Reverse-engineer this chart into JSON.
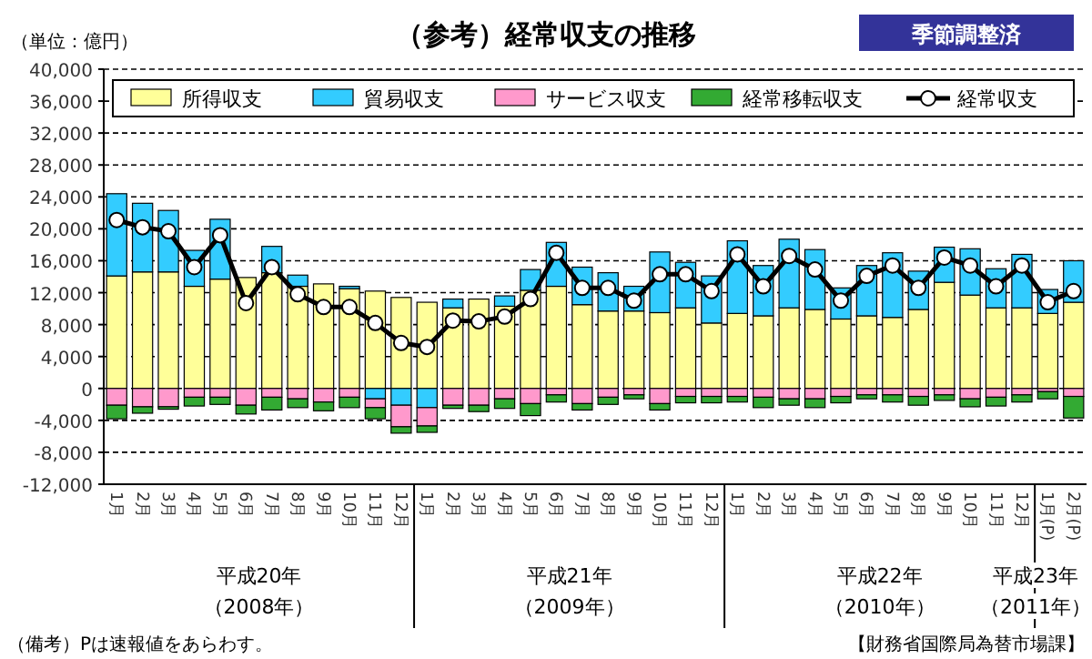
{
  "chart_data": {
    "type": "bar",
    "stacked": true,
    "title": "（参考）経常収支の推移",
    "subtitle": "季節調整済",
    "ylabel": "（単位：億円）",
    "categories": [
      "1月",
      "2月",
      "3月",
      "4月",
      "5月",
      "6月",
      "7月",
      "8月",
      "9月",
      "10月",
      "11月",
      "12月",
      "1月",
      "2月",
      "3月",
      "4月",
      "5月",
      "6月",
      "7月",
      "8月",
      "9月",
      "10月",
      "11月",
      "12月",
      "1月",
      "2月",
      "3月",
      "4月",
      "5月",
      "6月",
      "7月",
      "8月",
      "9月",
      "10月",
      "11月",
      "12月",
      "1月(P)",
      "2月(P)"
    ],
    "series": [
      {
        "name": "所得収支",
        "color": "#ffff99",
        "values": [
          14100,
          14600,
          14600,
          12800,
          13700,
          13900,
          14500,
          12800,
          13100,
          12500,
          12200,
          11400,
          10800,
          10100,
          11200,
          10300,
          12300,
          12800,
          10500,
          9700,
          9700,
          9500,
          10100,
          8200,
          9400,
          9100,
          10100,
          9900,
          8700,
          9100,
          8900,
          9900,
          13300,
          11700,
          10100,
          10100,
          9400,
          10800
        ]
      },
      {
        "name": "貿易収支",
        "color": "#33ccff",
        "values": [
          10300,
          8600,
          7700,
          4500,
          7500,
          0,
          3300,
          1400,
          0,
          300,
          -1300,
          -2100,
          -2400,
          1100,
          0,
          1300,
          2600,
          5500,
          4700,
          4800,
          3100,
          7600,
          5700,
          5900,
          9100,
          6300,
          8600,
          7500,
          3900,
          6300,
          8100,
          4800,
          4400,
          5800,
          4900,
          6700,
          3000,
          5200
        ]
      },
      {
        "name": "サービス収支",
        "color": "#ff99cc",
        "values": [
          -2100,
          -2300,
          -2300,
          -1100,
          -1100,
          -2100,
          -1100,
          -1300,
          -1700,
          -1100,
          -1100,
          -2700,
          -2300,
          -2100,
          -2100,
          -1300,
          -1900,
          -800,
          -1900,
          -1100,
          -800,
          -1900,
          -1000,
          -1000,
          -1000,
          -1100,
          -1300,
          -1300,
          -1000,
          -800,
          -800,
          -1000,
          -800,
          -1300,
          -1100,
          -800,
          -400,
          -1000
        ]
      },
      {
        "name": "経常移転収支",
        "color": "#33aa33",
        "values": [
          -1700,
          -800,
          -300,
          -1100,
          -900,
          -1100,
          -1600,
          -1100,
          -1100,
          -1300,
          -1400,
          -800,
          -800,
          -400,
          -800,
          -1200,
          -1500,
          -900,
          -800,
          -900,
          -500,
          -800,
          -800,
          -800,
          -700,
          -1300,
          -800,
          -1100,
          -800,
          -500,
          -900,
          -1100,
          -700,
          -1000,
          -1100,
          -900,
          -900,
          -2700
        ]
      },
      {
        "name": "経常収支",
        "type": "line",
        "color": "#000000",
        "marker": "circle",
        "values": [
          21100,
          20200,
          19700,
          15200,
          19200,
          10700,
          15200,
          11800,
          10200,
          10200,
          8200,
          5700,
          5200,
          8500,
          8400,
          9000,
          11200,
          17000,
          12600,
          12600,
          11000,
          14300,
          14300,
          12200,
          16800,
          12800,
          16600,
          14900,
          11000,
          14100,
          15400,
          12600,
          16400,
          15400,
          12800,
          15400,
          10800,
          12200
        ]
      }
    ],
    "ylim": [
      -12000,
      40000
    ],
    "yticks": [
      {
        "value": -12000,
        "label": "-12,000"
      },
      {
        "value": -8000,
        "label": "-8,000"
      },
      {
        "value": -4000,
        "label": "-4,000"
      },
      0,
      {
        "value": 4000,
        "label": "4,000"
      },
      {
        "value": 8000,
        "label": "8,000"
      },
      {
        "value": 12000,
        "label": "12,000"
      },
      {
        "value": 16000,
        "label": "16,000"
      },
      {
        "value": 20000,
        "label": "20,000"
      },
      {
        "value": 24000,
        "label": "24,000"
      },
      {
        "value": 28000,
        "label": "28,000"
      },
      {
        "value": 32000,
        "label": "32,000"
      },
      {
        "value": 36000,
        "label": "36,000"
      },
      {
        "value": 40000,
        "label": "40,000"
      }
    ],
    "grid": "y",
    "legend": "top",
    "annotations": [
      "平成20年",
      "（2008年）",
      "平成21年",
      "（2009年）",
      "平成22年",
      "（2010年）",
      "平成23年",
      "（2011年）",
      "（備考）Pは速報値をあらわす。",
      "【財務省国際局為替市場課】"
    ]
  }
}
